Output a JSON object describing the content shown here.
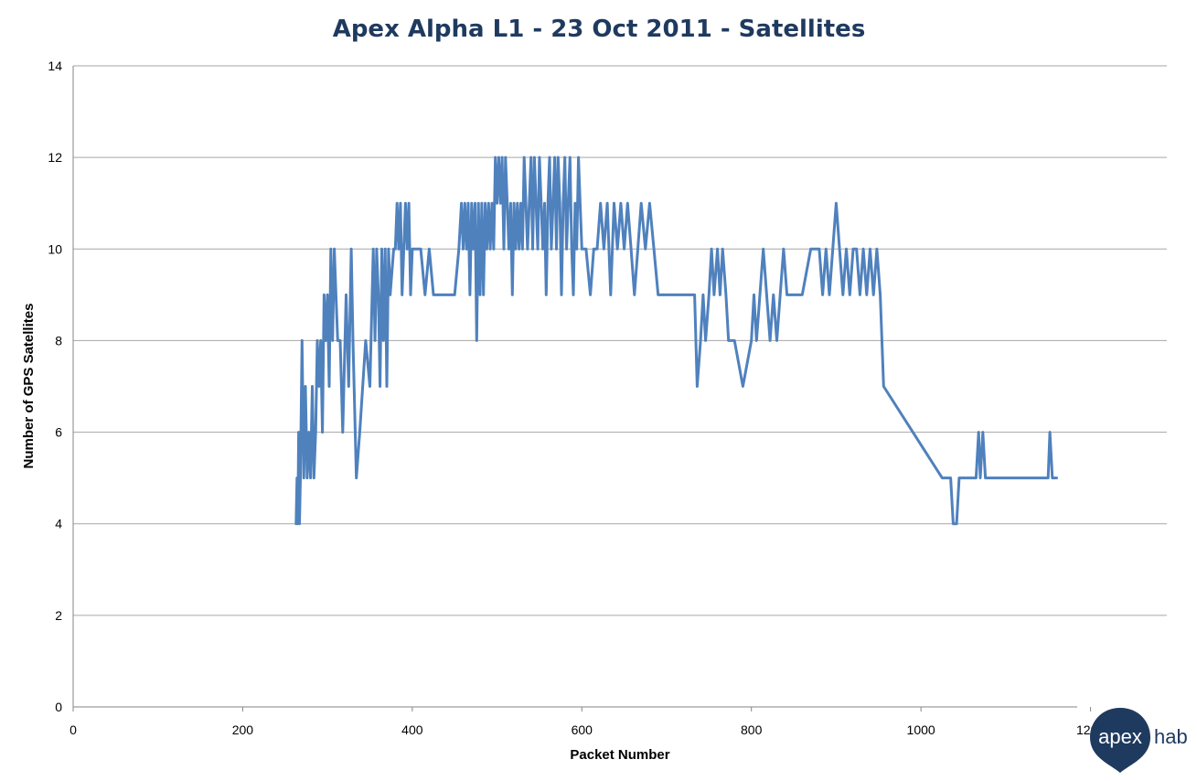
{
  "chart_data": {
    "type": "line",
    "title": "Apex Alpha L1 - 23 Oct 2011 - Satellites",
    "xlabel": "Packet Number",
    "ylabel": "Number of GPS Satellites",
    "xlim": [
      0,
      1290
    ],
    "ylim": [
      0,
      14
    ],
    "xticks": [
      0,
      200,
      400,
      600,
      800,
      1000,
      1200
    ],
    "yticks": [
      0,
      2,
      4,
      6,
      8,
      10,
      12,
      14
    ],
    "grid": true,
    "legend": "none",
    "series": [
      {
        "color": "#4f81bd",
        "x": [
          263,
          264,
          265,
          266,
          267,
          268,
          270,
          272,
          274,
          276,
          278,
          280,
          282,
          284,
          286,
          288,
          290,
          292,
          294,
          296,
          298,
          300,
          302,
          304,
          306,
          308,
          310,
          312,
          315,
          318,
          322,
          325,
          328,
          330,
          334,
          338,
          345,
          350,
          354,
          356,
          358,
          360,
          362,
          364,
          366,
          368,
          370,
          372,
          374,
          378,
          380,
          382,
          384,
          386,
          388,
          390,
          392,
          394,
          396,
          398,
          400,
          405,
          410,
          415,
          420,
          425,
          430,
          440,
          450,
          455,
          458,
          460,
          462,
          464,
          466,
          468,
          470,
          472,
          474,
          476,
          478,
          480,
          482,
          484,
          486,
          488,
          490,
          492,
          494,
          496,
          498,
          500,
          502,
          504,
          506,
          508,
          510,
          512,
          514,
          516,
          518,
          520,
          522,
          524,
          526,
          528,
          530,
          532,
          534,
          536,
          538,
          540,
          542,
          544,
          546,
          548,
          550,
          552,
          554,
          556,
          558,
          560,
          562,
          564,
          566,
          568,
          570,
          572,
          574,
          576,
          578,
          580,
          582,
          584,
          586,
          588,
          590,
          592,
          594,
          596,
          598,
          600,
          605,
          610,
          614,
          618,
          622,
          626,
          630,
          634,
          638,
          642,
          646,
          650,
          654,
          658,
          662,
          666,
          670,
          675,
          680,
          685,
          690,
          700,
          710,
          720,
          728,
          730,
          733,
          736,
          740,
          743,
          746,
          750,
          753,
          756,
          760,
          763,
          766,
          770,
          773,
          776,
          780,
          790,
          800,
          803,
          806,
          810,
          814,
          818,
          822,
          826,
          830,
          834,
          838,
          842,
          846,
          850,
          860,
          870,
          880,
          884,
          888,
          892,
          896,
          900,
          904,
          908,
          912,
          916,
          920,
          924,
          928,
          932,
          936,
          940,
          944,
          948,
          952,
          956,
          1025,
          1035,
          1038,
          1042,
          1045,
          1050,
          1060,
          1065,
          1068,
          1070,
          1073,
          1076,
          1080,
          1100,
          1120,
          1140,
          1150,
          1152,
          1155,
          1160
        ],
        "y": [
          4,
          5,
          4,
          6,
          4,
          5,
          8,
          5,
          7,
          5,
          6,
          5,
          7,
          5,
          6,
          8,
          7,
          8,
          6,
          9,
          8,
          9,
          7,
          10,
          8,
          10,
          9,
          8,
          8,
          6,
          9,
          7,
          10,
          8,
          5,
          6,
          8,
          7,
          10,
          8,
          10,
          9,
          7,
          10,
          8,
          10,
          7,
          10,
          9,
          10,
          10,
          11,
          10,
          11,
          9,
          10,
          11,
          10,
          11,
          9,
          10,
          10,
          10,
          9,
          10,
          9,
          9,
          9,
          9,
          10,
          11,
          10,
          11,
          10,
          11,
          9,
          11,
          10,
          11,
          8,
          11,
          9,
          11,
          9,
          11,
          10,
          11,
          10,
          11,
          10,
          12,
          11,
          12,
          11,
          12,
          10,
          12,
          11,
          10,
          11,
          9,
          11,
          10,
          11,
          10,
          11,
          10,
          12,
          11,
          10,
          11,
          12,
          10,
          12,
          11,
          10,
          12,
          11,
          10,
          11,
          9,
          11,
          12,
          10,
          11,
          12,
          10,
          12,
          11,
          9,
          11,
          12,
          10,
          11,
          12,
          10,
          9,
          11,
          10,
          12,
          11,
          10,
          10,
          9,
          10,
          10,
          11,
          10,
          11,
          9,
          11,
          10,
          11,
          10,
          11,
          10,
          9,
          10,
          11,
          10,
          11,
          10,
          9,
          9,
          9,
          9,
          9,
          9,
          9,
          7,
          8,
          9,
          8,
          9,
          10,
          9,
          10,
          9,
          10,
          9,
          8,
          8,
          8,
          7,
          8,
          9,
          8,
          9,
          10,
          9,
          8,
          9,
          8,
          9,
          10,
          9,
          9,
          9,
          9,
          10,
          10,
          9,
          10,
          9,
          10,
          11,
          10,
          9,
          10,
          9,
          10,
          10,
          9,
          10,
          9,
          10,
          9,
          10,
          9,
          7,
          5,
          5,
          4,
          4,
          5,
          5,
          5,
          5,
          6,
          5,
          6,
          5,
          5,
          5,
          5,
          5,
          5,
          6,
          5,
          5
        ]
      }
    ]
  },
  "logo": {
    "word1": "apex",
    "word2": "hab",
    "colors": {
      "pin": "#1f3a5f",
      "text": "#ffffff"
    }
  }
}
